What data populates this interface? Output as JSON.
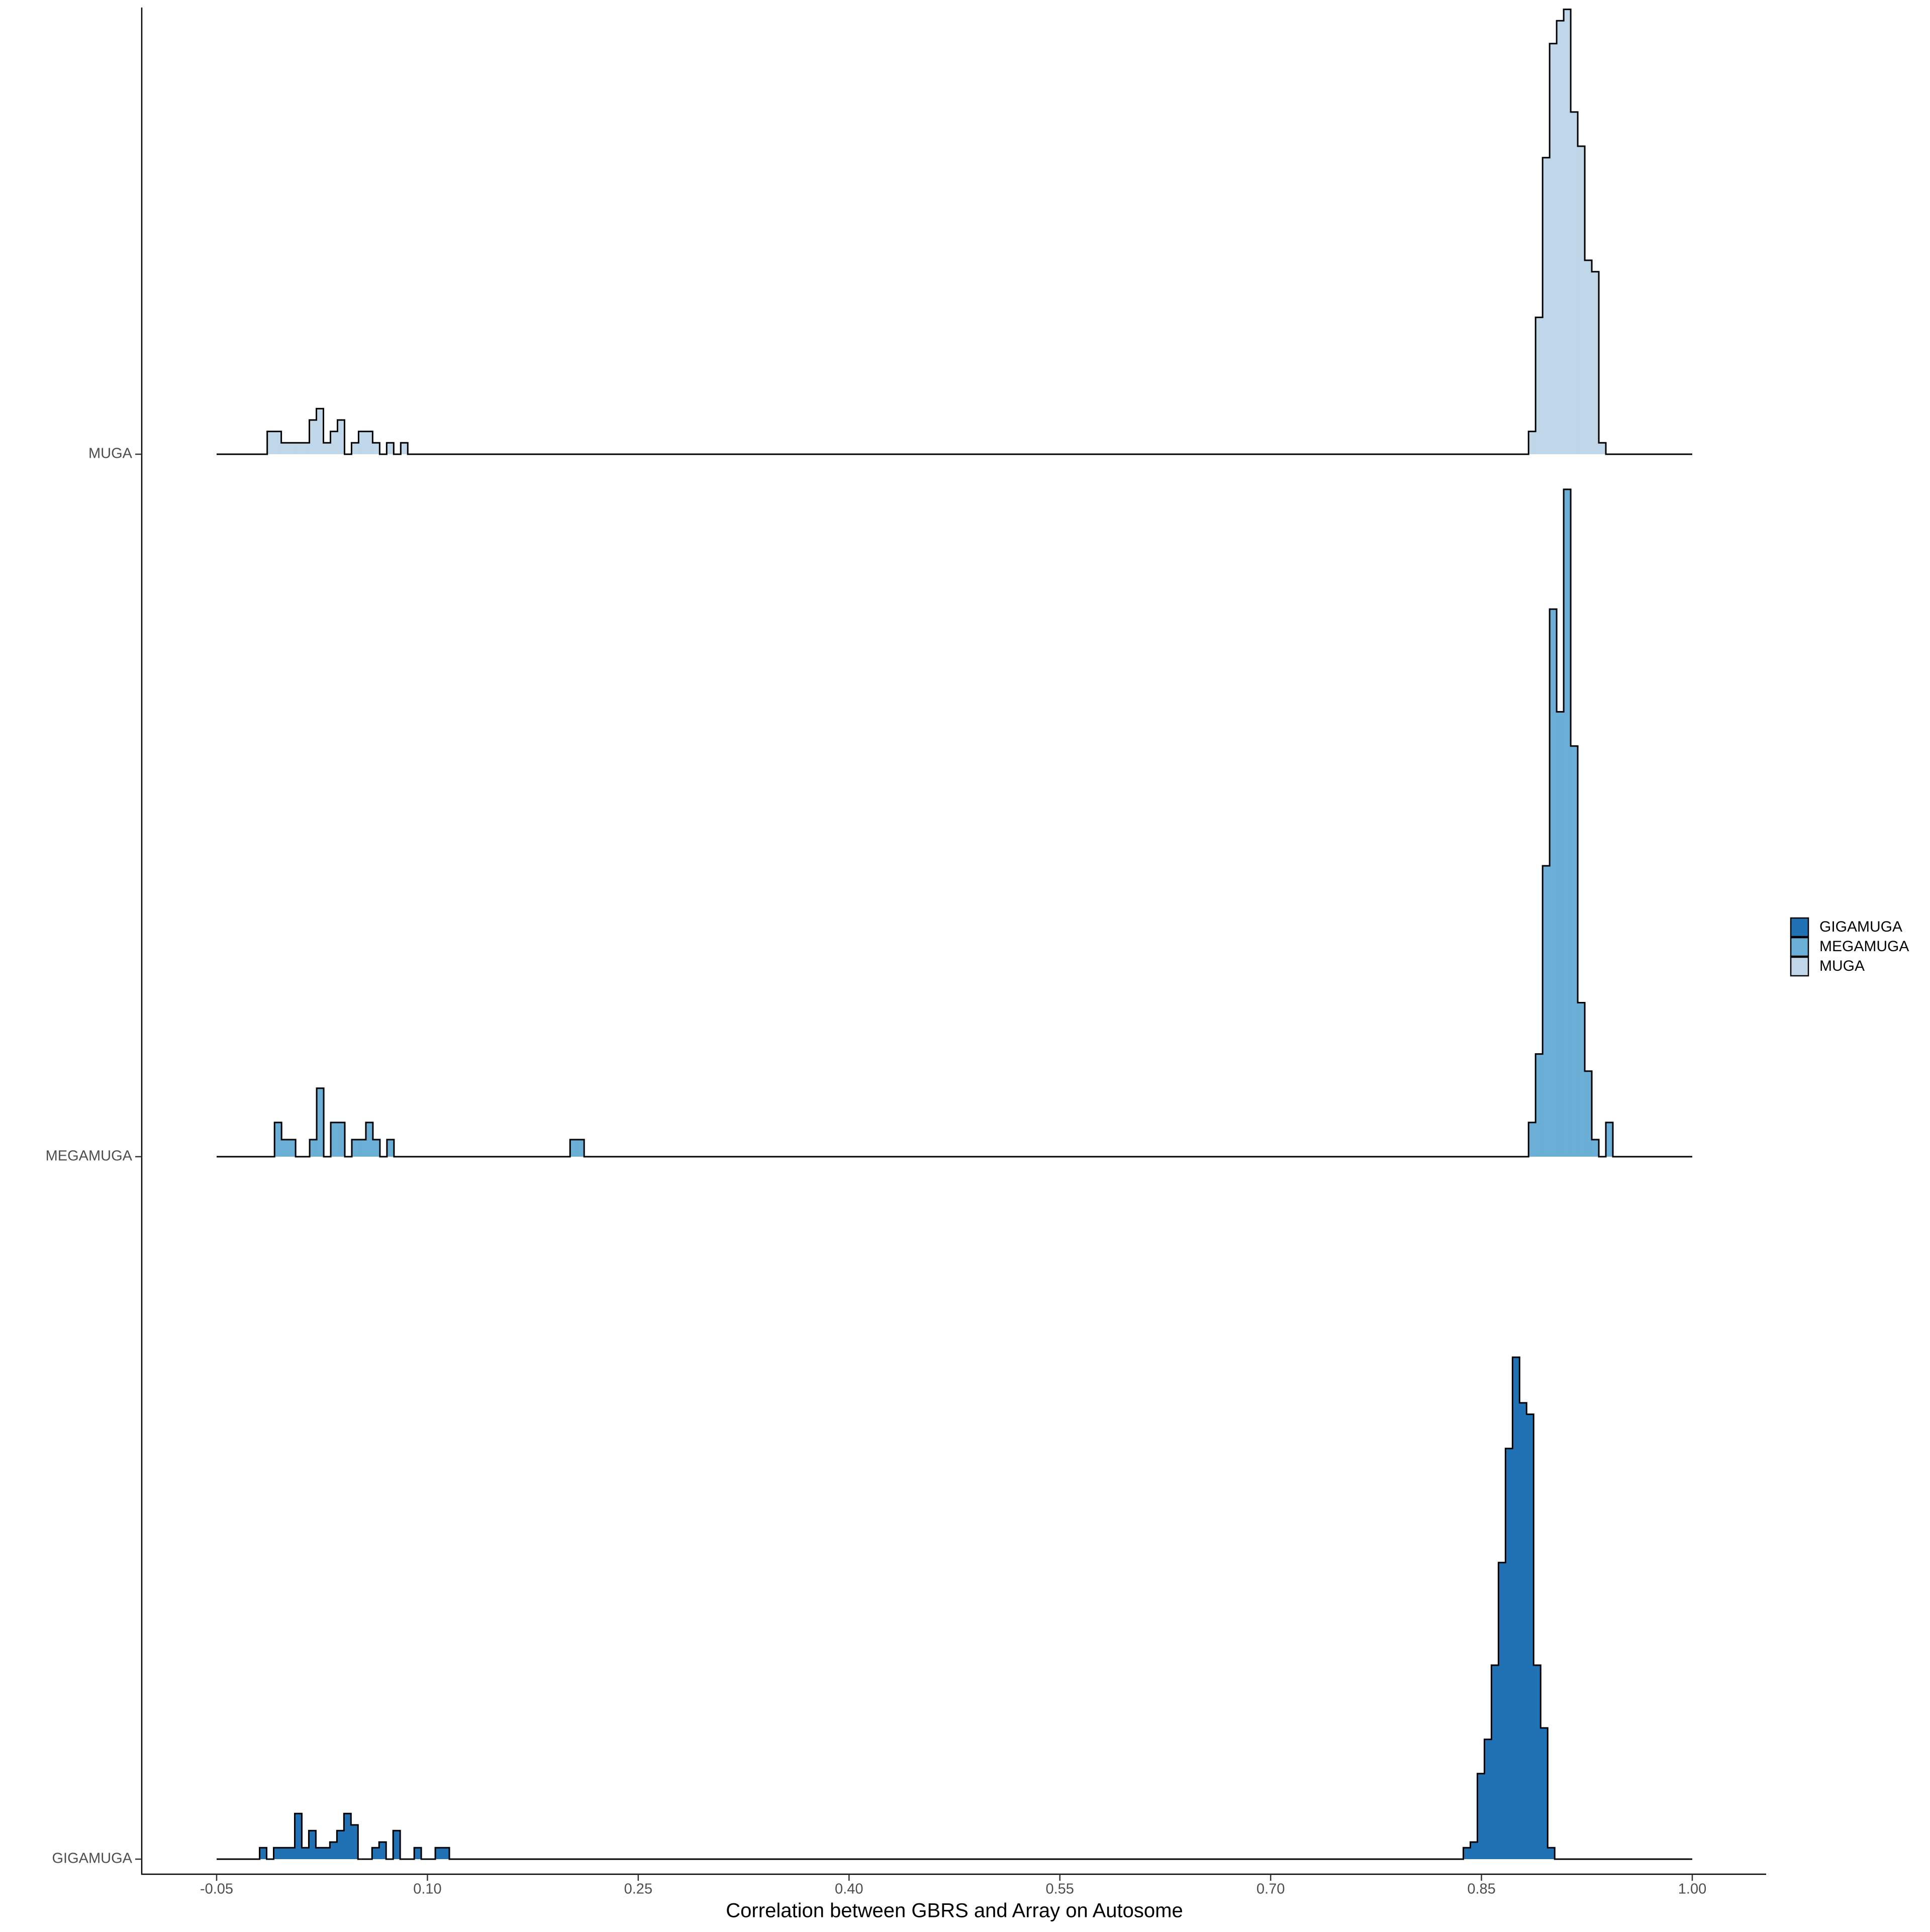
{
  "chart_data": {
    "type": "ridgeline_histogram",
    "x_label": "Correlation between GBRS and Array on Autosome",
    "categories": [
      "GIGAMUGA",
      "MEGAMUGA",
      "MUGA"
    ],
    "xlim": [
      -0.05,
      1.0
    ],
    "xticks": [
      -0.05,
      {
        "value": 0.1,
        "label": "0.10"
      },
      0.25,
      {
        "value": 0.4,
        "label": "0.40"
      },
      0.55,
      {
        "value": 0.7,
        "label": "0.70"
      },
      0.85,
      {
        "value": 1.0,
        "label": "1.00"
      }
    ],
    "binwidth": 0.005,
    "outline_color": "#000000",
    "legend": "right",
    "series": [
      {
        "name": "GIGAMUGA",
        "color": "#2171b5",
        "x": [
          -0.0169,
          -0.0119,
          -0.0069,
          -0.0019,
          0.0031,
          0.0081,
          0.0131,
          0.0181,
          0.0231,
          0.0281,
          0.0331,
          0.0381,
          0.0431,
          0.0481,
          0.0531,
          0.0581,
          0.0631,
          0.0681,
          0.0731,
          0.0781,
          0.0831,
          0.0881,
          0.0931,
          0.0981,
          0.1031,
          0.1081,
          0.1131,
          0.8396,
          0.8446,
          0.8496,
          0.8546,
          0.8596,
          0.8646,
          0.8696,
          0.8746,
          0.8796,
          0.8846,
          0.8896,
          0.8946,
          0.8996
        ],
        "values": [
          1,
          0,
          1,
          1,
          1,
          4,
          1,
          2.5,
          1,
          1,
          1.5,
          2.5,
          4,
          3,
          0,
          0,
          1,
          1.5,
          0,
          2.5,
          0,
          0,
          1,
          0,
          0,
          1,
          1,
          1,
          1.5,
          7.5,
          10.5,
          17,
          26,
          36,
          44,
          40,
          39,
          17,
          11.5,
          1
        ]
      },
      {
        "name": "MEGAMUGA",
        "color": "#6baed6",
        "x": [
          -0.0063,
          -0.0013,
          0.0037,
          0.0087,
          0.0137,
          0.0187,
          0.0237,
          0.0287,
          0.0337,
          0.0387,
          0.0437,
          0.0487,
          0.0537,
          0.0587,
          0.0637,
          0.0687,
          0.0737,
          0.204,
          0.209,
          0.886,
          0.891,
          0.896,
          0.901,
          0.906,
          0.911,
          0.916,
          0.921,
          0.926,
          0.931,
          0.936,
          0.941
        ],
        "values": [
          3,
          1.5,
          1.5,
          0,
          0,
          1.5,
          6,
          0,
          3,
          3,
          0,
          1.5,
          1.5,
          3,
          1.5,
          0,
          1.5,
          1.5,
          1.5,
          3,
          9,
          25.5,
          48,
          39,
          58.5,
          36,
          13.5,
          7.5,
          1.5,
          0,
          3
        ]
      },
      {
        "name": "MUGA",
        "color": "#bfd7e8",
        "x": [
          -0.0115,
          -0.0065,
          -0.0015,
          0.0035,
          0.0085,
          0.0135,
          0.0185,
          0.0235,
          0.0285,
          0.0335,
          0.0385,
          0.0435,
          0.0485,
          0.0535,
          0.0585,
          0.0635,
          0.0685,
          0.0735,
          0.0785,
          0.0835,
          0.886,
          0.891,
          0.896,
          0.901,
          0.906,
          0.911,
          0.916,
          0.921,
          0.926,
          0.931,
          0.936
        ],
        "values": [
          2,
          2,
          1,
          1,
          1,
          1,
          3,
          4,
          1,
          2,
          3,
          0,
          1,
          2,
          2,
          1,
          0,
          1,
          0,
          1,
          2,
          12,
          26,
          36,
          38,
          39,
          30,
          27,
          17,
          16,
          1
        ]
      }
    ]
  }
}
